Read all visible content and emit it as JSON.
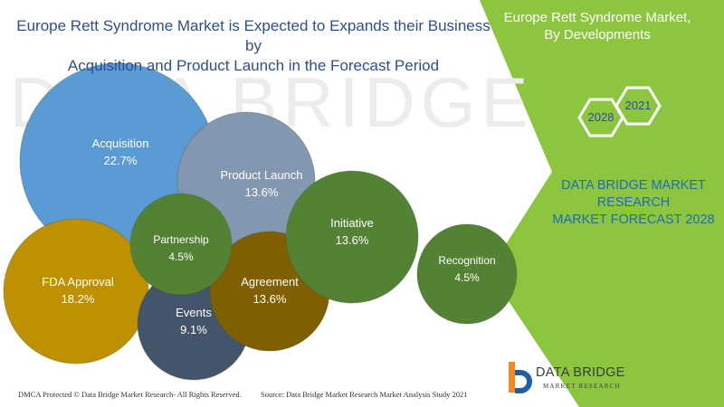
{
  "header": {
    "title_line1": "Europe Rett Syndrome Market is Expected to Expands their Business by",
    "title_line2": "Acquisition and Product Launch in the Forecast Period"
  },
  "side_panel": {
    "title_line1": "Europe Rett Syndrome Market,",
    "title_line2": "By Developments",
    "year_a": "2021",
    "year_b": "2028",
    "brand_line1": "DATA BRIDGE MARKET",
    "brand_line2": "RESEARCH",
    "brand_line3": "MARKET FORECAST 2028"
  },
  "footer": {
    "left": "DMCA Protected © Data Bridge Market Research- All Rights Reserved.",
    "right": "Source: Data Bridge Market Research Market Analysis Study 2021"
  },
  "logo": {
    "name": "DATA BRIDGE",
    "tagline": "MARKET RESEARCH"
  },
  "watermark": {
    "text": "DATA BRIDGE"
  },
  "colors": {
    "panel_green": "#8cc63f",
    "title_blue": "#2e4f8f",
    "brand_blue": "#1f6bb6",
    "logo_orange": "#f08a24",
    "logo_blue": "#1f5fa8"
  },
  "chart_data": {
    "type": "bubble",
    "unit": "%",
    "series": [
      {
        "label": "Acquisition",
        "value": 22.7,
        "color": "#5b9bd5"
      },
      {
        "label": "Product Launch",
        "value": 13.6,
        "color": "#8497b0"
      },
      {
        "label": "FDA Approval",
        "value": 18.2,
        "color": "#bf9000"
      },
      {
        "label": "Events",
        "value": 9.1,
        "color": "#44546a"
      },
      {
        "label": "Agreement",
        "value": 13.6,
        "color": "#7f5f00"
      },
      {
        "label": "Partnership",
        "value": 4.5,
        "color": "#548235"
      },
      {
        "label": "Initiative",
        "value": 13.6,
        "color": "#548235"
      },
      {
        "label": "Recognition",
        "value": 4.5,
        "color": "#548235"
      }
    ]
  }
}
